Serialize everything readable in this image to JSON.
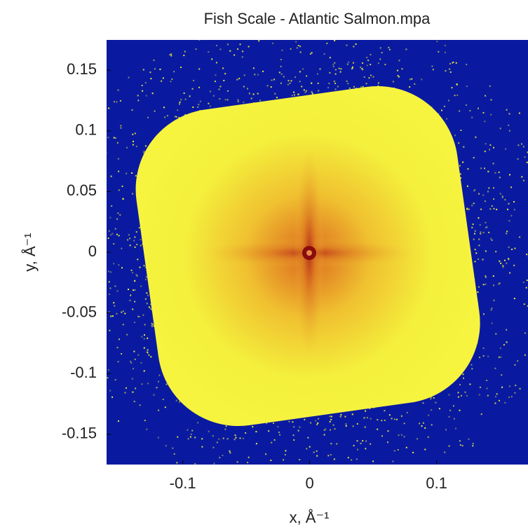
{
  "chart_data": {
    "type": "heatmap",
    "title": "Fish Scale - Atlantic Salmon.mpa",
    "x_label": "x, Å⁻¹",
    "y_label": "y, Å⁻¹",
    "xlim": [
      -0.16,
      0.172
    ],
    "ylim": [
      -0.175,
      0.175
    ],
    "xticks": [
      -0.1,
      0,
      0.1
    ],
    "yticks": [
      -0.15,
      -0.1,
      -0.05,
      0,
      0.05,
      0.1,
      0.15
    ],
    "colormap": [
      "#0a1aa0",
      "#f2f23a",
      "#f0a020",
      "#a01010"
    ]
  }
}
